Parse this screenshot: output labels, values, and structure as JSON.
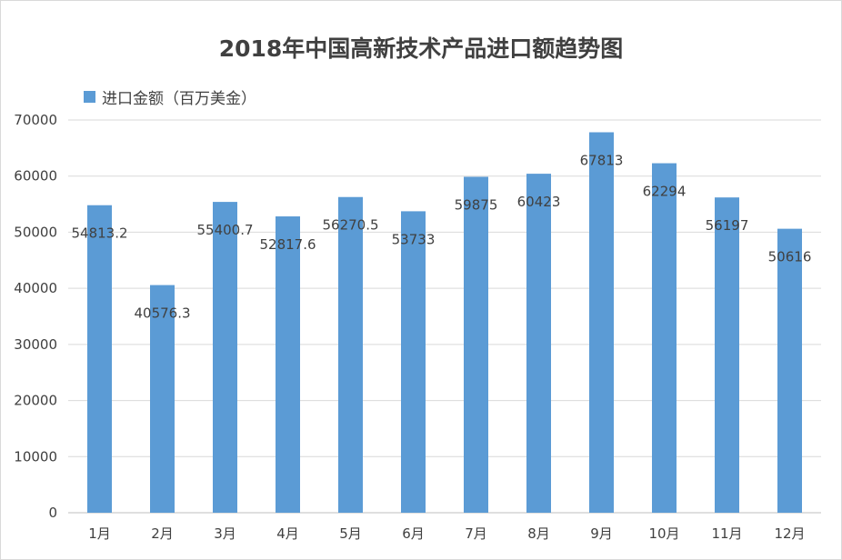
{
  "chart_data": {
    "type": "bar",
    "title": "2018年中国高新技术产品进口额趋势图",
    "xlabel": "",
    "ylabel": "",
    "categories": [
      "1月",
      "2月",
      "3月",
      "4月",
      "5月",
      "6月",
      "7月",
      "8月",
      "9月",
      "10月",
      "11月",
      "12月"
    ],
    "series": [
      {
        "name": "进口金额（百万美金）",
        "values": [
          54813.2,
          40576.3,
          55400.7,
          52817.6,
          56270.5,
          53733,
          59875,
          60423,
          67813,
          62294,
          56197,
          50616
        ],
        "labels": [
          "54813.2",
          "40576.3",
          "55400.7",
          "52817.6",
          "56270.5",
          "53733",
          "59875",
          "60423",
          "67813",
          "62294",
          "56197",
          "50616"
        ],
        "color": "#5b9bd5"
      }
    ],
    "ylim": [
      0,
      70000
    ],
    "yticks": [
      0,
      10000,
      20000,
      30000,
      40000,
      50000,
      60000,
      70000
    ],
    "grid": true,
    "legend_position": "top-left"
  }
}
